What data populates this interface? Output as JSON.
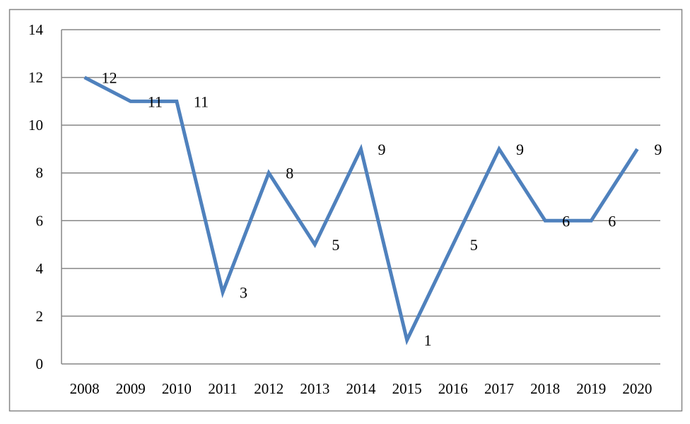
{
  "chart_data": {
    "type": "line",
    "title": "",
    "xlabel": "",
    "ylabel": "",
    "categories": [
      "2008",
      "2009",
      "2010",
      "2011",
      "2012",
      "2013",
      "2014",
      "2015",
      "2016",
      "2017",
      "2018",
      "2019",
      "2020"
    ],
    "series": [
      {
        "values": [
          12,
          11,
          11,
          3,
          8,
          5,
          9,
          1,
          5,
          9,
          6,
          6,
          9
        ],
        "labels": [
          "12",
          "11",
          "11",
          "3",
          "8",
          "5",
          "9",
          "1",
          "5",
          "9",
          "6",
          "6",
          "9"
        ],
        "color": "#4F81BD"
      }
    ],
    "ylim": [
      0,
      14
    ],
    "yticks": [
      "0",
      "2",
      "4",
      "6",
      "8",
      "10",
      "12",
      "14"
    ],
    "grid": true,
    "legend": "none",
    "colors": {
      "line": "#4F81BD",
      "gridline": "#868686",
      "border": "#868686"
    }
  }
}
